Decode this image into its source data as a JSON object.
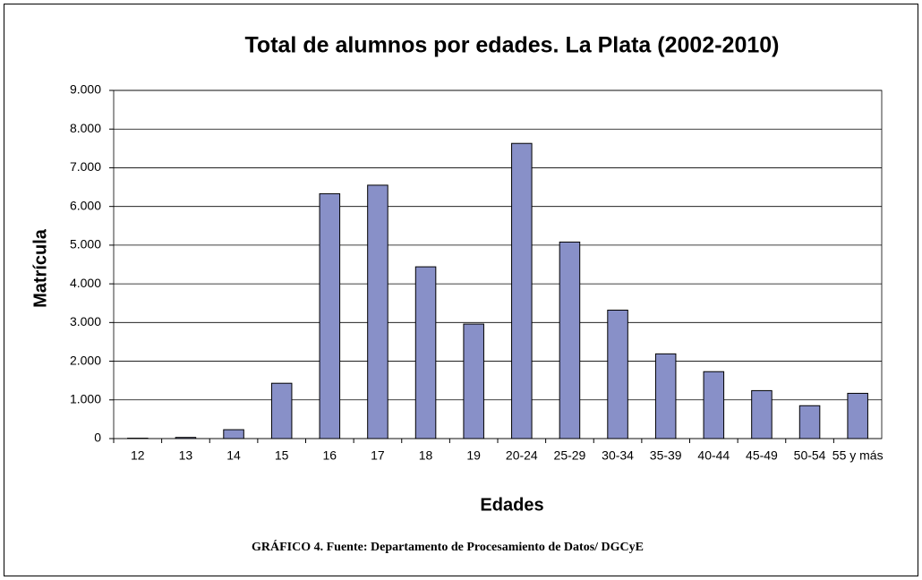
{
  "chart_data": {
    "type": "bar",
    "title": "Total de alumnos por edades. La Plata (2002-2010)",
    "x_label": "Edades",
    "y_label": "Matrícula",
    "caption": "GRÁFICO 4. Fuente: Departamento de Procesamiento de Datos/ DGCyE",
    "categories": [
      "12",
      "13",
      "14",
      "15",
      "16",
      "17",
      "18",
      "19",
      "20-24",
      "25-29",
      "30-34",
      "35-39",
      "40-44",
      "45-49",
      "50-54",
      "55 y más"
    ],
    "values": [
      10,
      30,
      230,
      1430,
      6330,
      6550,
      4440,
      2960,
      7630,
      5080,
      3320,
      2190,
      1730,
      1240,
      850,
      1170
    ],
    "color": "#8890c8",
    "ylim": [
      0,
      9000
    ],
    "yticks": [
      0,
      {
        "value": 1000,
        "label": "1.000"
      },
      {
        "value": 2000,
        "label": "2.000"
      },
      {
        "value": 3000,
        "label": "3.000"
      },
      {
        "value": 4000,
        "label": "4.000"
      },
      {
        "value": 5000,
        "label": "5.000"
      },
      {
        "value": 6000,
        "label": "6.000"
      },
      {
        "value": 7000,
        "label": "7.000"
      },
      {
        "value": 8000,
        "label": "8.000"
      },
      {
        "value": 9000,
        "label": "9.000"
      }
    ],
    "grid": true
  }
}
